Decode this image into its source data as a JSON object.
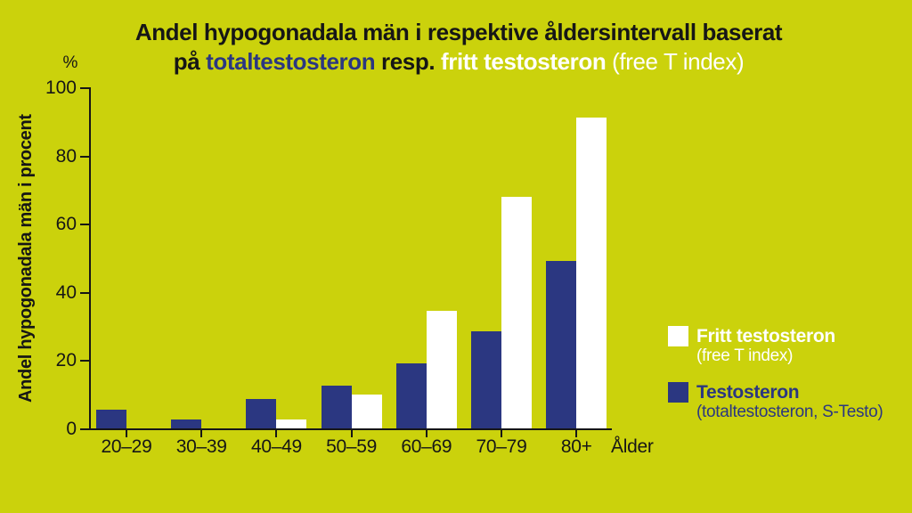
{
  "title": {
    "line1": "Andel hypogonadala män i respektive åldersintervall baserat",
    "line2": {
      "part1": "på ",
      "part2": "totaltestosteron",
      "part3": " resp. ",
      "part4": "fritt testosteron",
      "part5": " (free T index)"
    }
  },
  "colors": {
    "background": "#cbd20c",
    "navy": "#2b3781",
    "white": "#ffffff",
    "text": "#161616"
  },
  "legend": [
    {
      "line1": "Fritt testosteron",
      "line2": "(free T index)",
      "swatch": "#ffffff",
      "text_color": "#ffffff"
    },
    {
      "line1": "Testosteron",
      "line2": "(totaltestosteron, S-Testo)",
      "swatch": "#2b3781",
      "text_color": "#2b3781"
    }
  ],
  "chart_data": {
    "type": "bar",
    "title": "Andel hypogonadala män i respektive åldersintervall baserat på totaltestosteron resp. fritt testosteron (free T index)",
    "categories": [
      "20–29",
      "30–39",
      "40–49",
      "50–59",
      "60–69",
      "70–79",
      "80+"
    ],
    "series": [
      {
        "name": "Testosteron (totaltestosteron, S-Testo)",
        "color": "#2b3781",
        "values": [
          5.5,
          2.5,
          8.5,
          12.5,
          19,
          28.5,
          49
        ]
      },
      {
        "name": "Fritt testosteron (free T index)",
        "color": "#ffffff",
        "values": [
          0,
          0,
          2.5,
          10,
          34.5,
          68,
          91
        ]
      }
    ],
    "xlabel": "Ålder",
    "ylabel": "Andel hypogonadala män i procent",
    "y_unit": "%",
    "ylim": [
      0,
      100
    ],
    "yticks": [
      0,
      20,
      40,
      60,
      80,
      100
    ],
    "grid": false,
    "legend_position": "right"
  }
}
